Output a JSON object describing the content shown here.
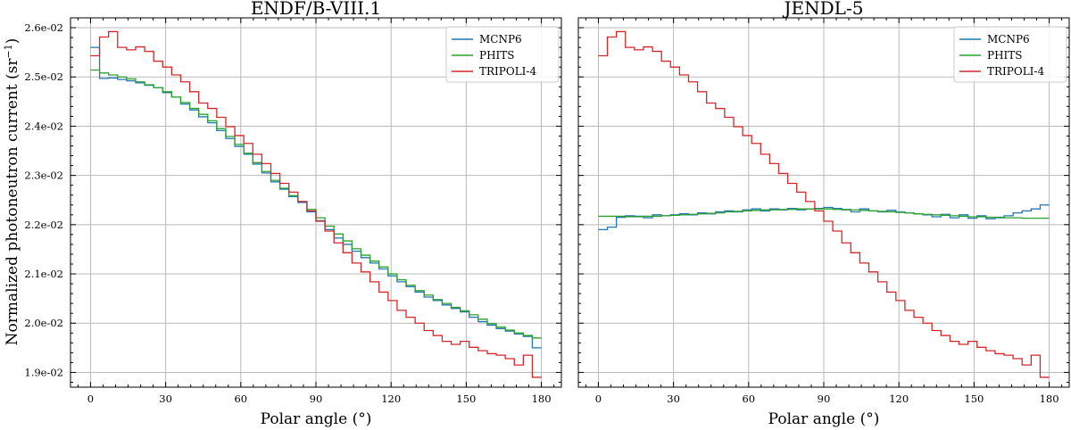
{
  "figure": {
    "ylabel": "Normalized photoneutron current (sr",
    "ylabel_sup": "−1",
    "ylabel_close": ")"
  },
  "colors": {
    "MCNP6": "#1f77b4",
    "PHITS": "#2ca02c",
    "TRIPOLI-4": "#d62728"
  },
  "chart_data": [
    {
      "type": "line",
      "title": "ENDF/B-VIII.1",
      "xlabel": "Polar angle (°)",
      "ylabel": "Normalized photoneutron current (sr−1)",
      "xlim": [
        -8,
        188
      ],
      "ylim": [
        0.0187,
        0.0262
      ],
      "xticks": [
        0,
        30,
        60,
        90,
        120,
        150,
        180
      ],
      "xtick_labels": [
        "0",
        "30",
        "60",
        "90",
        "120",
        "150",
        "180"
      ],
      "yticks": [
        0.019,
        0.02,
        0.021,
        0.022,
        0.023,
        0.024,
        0.025,
        0.026
      ],
      "ytick_labels": [
        "1.9e-02",
        "2.0e-02",
        "2.1e-02",
        "2.2e-02",
        "2.3e-02",
        "2.4e-02",
        "2.5e-02",
        "2.6e-02"
      ],
      "legend": [
        "MCNP6",
        "PHITS",
        "TRIPOLI-4"
      ],
      "legend_position": "top-right",
      "bin_edges": [
        0,
        3.6,
        7.2,
        10.8,
        14.4,
        18,
        21.6,
        25.2,
        28.8,
        32.4,
        36,
        39.6,
        43.2,
        46.8,
        50.4,
        54,
        57.6,
        61.2,
        64.8,
        68.4,
        72,
        75.6,
        79.2,
        82.8,
        86.4,
        90,
        93.6,
        97.2,
        100.8,
        104.4,
        108,
        111.6,
        115.2,
        118.8,
        122.4,
        126,
        129.6,
        133.2,
        136.8,
        140.4,
        144,
        147.6,
        151.2,
        154.8,
        158.4,
        162,
        165.6,
        169.2,
        172.8,
        176.4,
        180
      ],
      "series": [
        {
          "name": "MCNP6",
          "values": [
            0.0256,
            0.02497,
            0.02498,
            0.02495,
            0.02492,
            0.02488,
            0.02483,
            0.02478,
            0.02468,
            0.02459,
            0.02445,
            0.02433,
            0.02419,
            0.02407,
            0.02391,
            0.02375,
            0.02359,
            0.02343,
            0.02323,
            0.02305,
            0.02287,
            0.02272,
            0.02257,
            0.02245,
            0.02226,
            0.02208,
            0.0219,
            0.02173,
            0.0216,
            0.02146,
            0.02133,
            0.02122,
            0.0211,
            0.02096,
            0.02084,
            0.02074,
            0.02063,
            0.02053,
            0.02046,
            0.02037,
            0.0203,
            0.02023,
            0.02012,
            0.02003,
            0.01996,
            0.01989,
            0.01984,
            0.01978,
            0.01973,
            0.0195
          ]
        },
        {
          "name": "PHITS",
          "values": [
            0.02514,
            0.02508,
            0.02504,
            0.025,
            0.02496,
            0.0249,
            0.02484,
            0.02478,
            0.0247,
            0.02459,
            0.02448,
            0.02436,
            0.02424,
            0.02411,
            0.02395,
            0.02379,
            0.02363,
            0.02345,
            0.02326,
            0.02308,
            0.0229,
            0.02274,
            0.02259,
            0.02247,
            0.02231,
            0.02214,
            0.02197,
            0.02181,
            0.02167,
            0.02151,
            0.02138,
            0.02126,
            0.02114,
            0.021,
            0.02088,
            0.02077,
            0.02066,
            0.02057,
            0.02048,
            0.0204,
            0.02032,
            0.02025,
            0.02017,
            0.02008,
            0.01999,
            0.01992,
            0.01986,
            0.0198,
            0.01975,
            0.0197
          ]
        },
        {
          "name": "TRIPOLI-4",
          "values": [
            0.02543,
            0.02581,
            0.02592,
            0.0256,
            0.02555,
            0.02561,
            0.02552,
            0.02532,
            0.0252,
            0.02504,
            0.0249,
            0.0247,
            0.02447,
            0.02436,
            0.02418,
            0.02399,
            0.02381,
            0.02365,
            0.02343,
            0.02324,
            0.02304,
            0.02284,
            0.02266,
            0.02247,
            0.02228,
            0.02207,
            0.02187,
            0.02163,
            0.02143,
            0.02122,
            0.02104,
            0.02084,
            0.02063,
            0.02046,
            0.02026,
            0.02012,
            0.02,
            0.01985,
            0.01975,
            0.01963,
            0.01957,
            0.01963,
            0.01951,
            0.01944,
            0.01938,
            0.01935,
            0.01928,
            0.01915,
            0.01935,
            0.0189
          ]
        }
      ]
    },
    {
      "type": "line",
      "title": "JENDL-5",
      "xlabel": "Polar angle (°)",
      "ylabel": "",
      "xlim": [
        -8,
        188
      ],
      "ylim": [
        0.0187,
        0.0262
      ],
      "xticks": [
        0,
        30,
        60,
        90,
        120,
        150,
        180
      ],
      "xtick_labels": [
        "0",
        "30",
        "60",
        "90",
        "120",
        "150",
        "180"
      ],
      "yticks": [
        0.019,
        0.02,
        0.021,
        0.022,
        0.023,
        0.024,
        0.025,
        0.026
      ],
      "ytick_labels": [],
      "legend": [
        "MCNP6",
        "PHITS",
        "TRIPOLI-4"
      ],
      "legend_position": "top-right",
      "bin_edges": [
        0,
        3.6,
        7.2,
        10.8,
        14.4,
        18,
        21.6,
        25.2,
        28.8,
        32.4,
        36,
        39.6,
        43.2,
        46.8,
        50.4,
        54,
        57.6,
        61.2,
        64.8,
        68.4,
        72,
        75.6,
        79.2,
        82.8,
        86.4,
        90,
        93.6,
        97.2,
        100.8,
        104.4,
        108,
        111.6,
        115.2,
        118.8,
        122.4,
        126,
        129.6,
        133.2,
        136.8,
        140.4,
        144,
        147.6,
        151.2,
        154.8,
        158.4,
        162,
        165.6,
        169.2,
        172.8,
        176.4,
        180
      ],
      "series": [
        {
          "name": "MCNP6",
          "values": [
            0.0219,
            0.02195,
            0.02215,
            0.02218,
            0.02217,
            0.02214,
            0.0222,
            0.02218,
            0.0222,
            0.02222,
            0.0222,
            0.02224,
            0.02222,
            0.02226,
            0.02228,
            0.02226,
            0.0223,
            0.02232,
            0.02228,
            0.02232,
            0.0223,
            0.02233,
            0.0223,
            0.02232,
            0.02233,
            0.02235,
            0.02233,
            0.0223,
            0.02226,
            0.02232,
            0.02228,
            0.02226,
            0.02229,
            0.02226,
            0.02224,
            0.02222,
            0.0222,
            0.02216,
            0.02221,
            0.02214,
            0.0222,
            0.02213,
            0.02218,
            0.02212,
            0.02214,
            0.02218,
            0.02224,
            0.02228,
            0.02232,
            0.0224
          ]
        },
        {
          "name": "PHITS",
          "values": [
            0.02217,
            0.02217,
            0.02217,
            0.02216,
            0.02216,
            0.02217,
            0.02217,
            0.02218,
            0.02219,
            0.0222,
            0.02221,
            0.02222,
            0.02223,
            0.02224,
            0.02226,
            0.02227,
            0.02228,
            0.02229,
            0.0223,
            0.0223,
            0.02231,
            0.02231,
            0.02232,
            0.02232,
            0.02232,
            0.02232,
            0.02231,
            0.02231,
            0.0223,
            0.02229,
            0.02228,
            0.02227,
            0.02226,
            0.02225,
            0.02224,
            0.02222,
            0.02221,
            0.0222,
            0.02219,
            0.02218,
            0.02217,
            0.02216,
            0.02216,
            0.02215,
            0.02215,
            0.02214,
            0.02214,
            0.02213,
            0.02213,
            0.02213
          ]
        },
        {
          "name": "TRIPOLI-4",
          "values": [
            0.02543,
            0.02581,
            0.02592,
            0.0256,
            0.02555,
            0.02561,
            0.02552,
            0.02532,
            0.0252,
            0.02504,
            0.0249,
            0.0247,
            0.02447,
            0.02436,
            0.02418,
            0.02399,
            0.02381,
            0.02365,
            0.02343,
            0.02324,
            0.02304,
            0.02284,
            0.02266,
            0.02247,
            0.02228,
            0.02207,
            0.02187,
            0.02163,
            0.02143,
            0.02122,
            0.02104,
            0.02084,
            0.02063,
            0.02046,
            0.02026,
            0.02012,
            0.02,
            0.01985,
            0.01975,
            0.01963,
            0.01957,
            0.01963,
            0.01951,
            0.01944,
            0.01938,
            0.01935,
            0.01928,
            0.01915,
            0.01935,
            0.0189
          ]
        }
      ]
    }
  ]
}
